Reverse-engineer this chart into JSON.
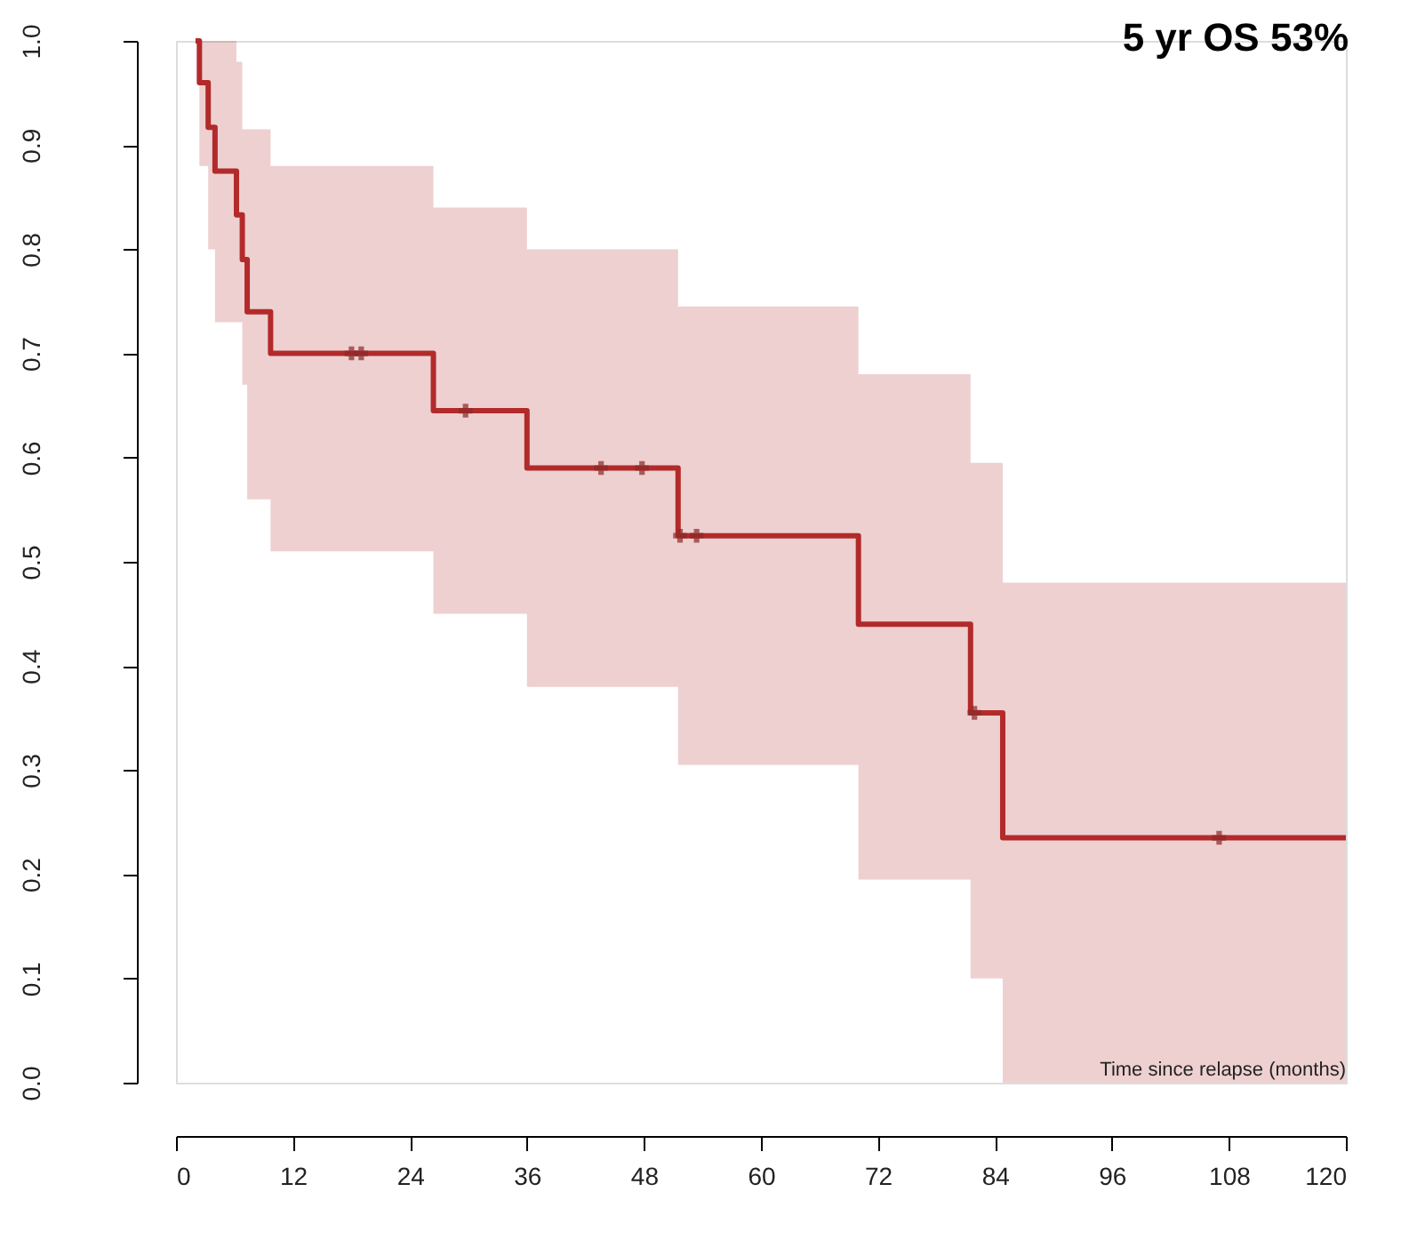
{
  "chart_data": {
    "type": "step",
    "title": "5 yr OS   53%",
    "xlabel": "Time since relapse (months)",
    "xlim": [
      0,
      120
    ],
    "xticks": [
      0,
      12,
      24,
      36,
      48,
      60,
      72,
      84,
      96,
      108,
      120
    ],
    "ylim": [
      0,
      1
    ],
    "yticks": [
      {
        "value": 0,
        "label": "0.0"
      },
      0.1,
      0.2,
      0.3,
      0.4,
      0.5,
      0.6,
      0.7,
      0.8,
      0.9,
      {
        "value": 1,
        "label": "1.0"
      }
    ],
    "grid": false,
    "series": [
      {
        "color": "#b22a2a",
        "x": [
          2,
          2.4,
          3.3,
          4.0,
          6.2,
          6.8,
          7.3,
          9.7,
          26.4,
          36,
          51.5,
          70,
          81.5,
          84.8,
          120
        ],
        "values": [
          1.0,
          0.96,
          0.917,
          0.875,
          0.833,
          0.79,
          0.74,
          0.7,
          0.645,
          0.59,
          0.525,
          0.44,
          0.355,
          0.235,
          0.235
        ],
        "lower": [
          1.0,
          0.88,
          0.8,
          0.73,
          0.73,
          0.67,
          0.56,
          0.51,
          0.45,
          0.38,
          0.305,
          0.195,
          0.1,
          0,
          0
        ],
        "upper": [
          1.0,
          1.0,
          1.0,
          1.0,
          0.98,
          0.915,
          0.915,
          0.88,
          0.84,
          0.8,
          0.745,
          0.68,
          0.595,
          0.48,
          0.48
        ]
      },
      {
        "type": "scatter",
        "marker": "cross",
        "color": "#8b2a2a",
        "x": [
          18,
          19,
          29.7,
          43.6,
          47.8,
          51.7,
          53.4,
          81.9,
          107
        ],
        "values": [
          0.7,
          0.7,
          0.645,
          0.59,
          0.59,
          0.525,
          0.525,
          0.355,
          0.235
        ]
      }
    ]
  }
}
